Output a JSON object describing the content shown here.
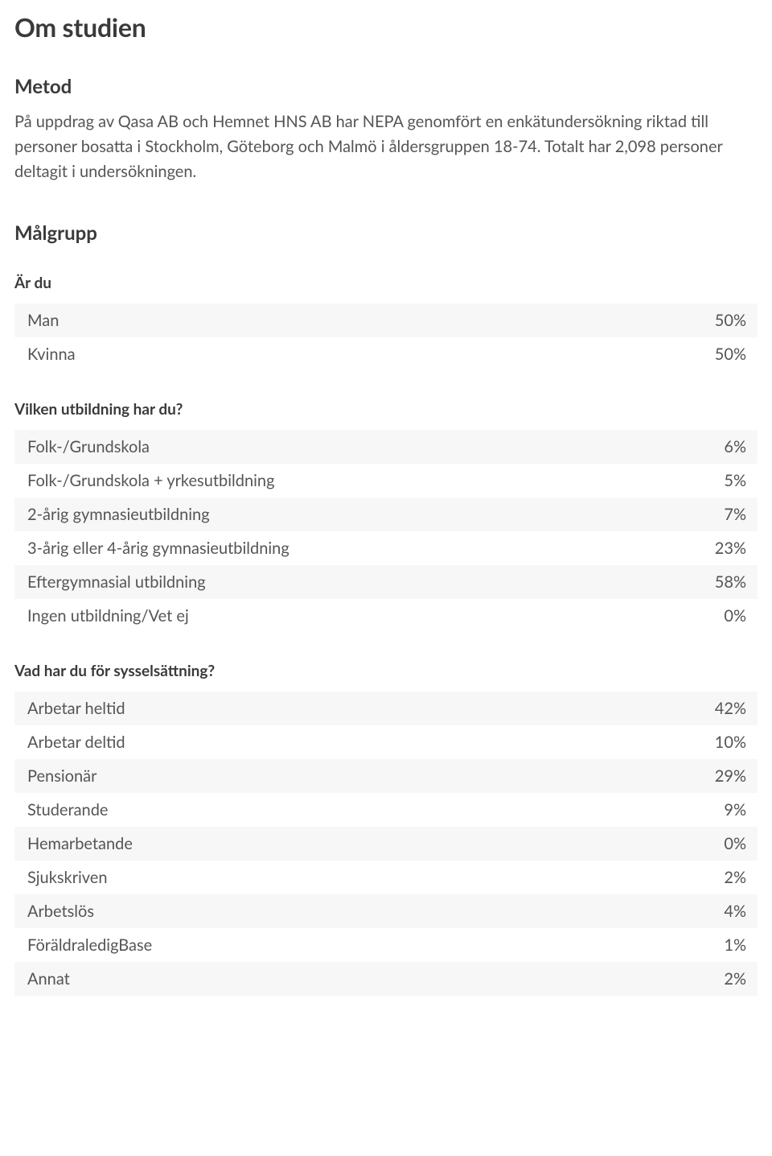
{
  "page_title": "Om studien",
  "colors": {
    "text_primary": "#3a3a3a",
    "text_body": "#555555",
    "row_shade": "#f7f7f7",
    "background": "#ffffff"
  },
  "typography": {
    "h1_fontsize": 32,
    "h2_fontsize": 24,
    "h3_fontsize": 19,
    "body_fontsize": 20,
    "row_fontsize": 20
  },
  "sections": {
    "metod": {
      "title": "Metod",
      "body": "På uppdrag av Qasa AB och Hemnet HNS AB har NEPA genomfört en enkätundersökning riktad till personer bosatta i Stockholm, Göteborg och Malmö i åldersgruppen 18-74. Totalt har 2,098 personer deltagit i undersökningen."
    },
    "malgrupp": {
      "title": "Målgrupp",
      "tables": [
        {
          "heading": "Är du",
          "rows": [
            {
              "label": "Man",
              "value": "50%"
            },
            {
              "label": "Kvinna",
              "value": "50%"
            }
          ]
        },
        {
          "heading": "Vilken utbildning har du?",
          "rows": [
            {
              "label": "Folk-/Grundskola",
              "value": "6%"
            },
            {
              "label": "Folk-/Grundskola + yrkesutbildning",
              "value": "5%"
            },
            {
              "label": "2-årig gymnasieutbildning",
              "value": "7%"
            },
            {
              "label": "3-årig eller 4-årig gymnasieutbildning",
              "value": "23%"
            },
            {
              "label": "Eftergymnasial utbildning",
              "value": "58%"
            },
            {
              "label": "Ingen utbildning/Vet ej",
              "value": "0%"
            }
          ]
        },
        {
          "heading": "Vad har du för sysselsättning?",
          "rows": [
            {
              "label": "Arbetar heltid",
              "value": "42%"
            },
            {
              "label": "Arbetar deltid",
              "value": "10%"
            },
            {
              "label": "Pensionär",
              "value": "29%"
            },
            {
              "label": "Studerande",
              "value": "9%"
            },
            {
              "label": "Hemarbetande",
              "value": "0%"
            },
            {
              "label": "Sjukskriven",
              "value": "2%"
            },
            {
              "label": "Arbetslös",
              "value": "4%"
            },
            {
              "label": "FöräldraledigBase",
              "value": "1%"
            },
            {
              "label": "Annat",
              "value": "2%"
            }
          ]
        }
      ]
    }
  }
}
